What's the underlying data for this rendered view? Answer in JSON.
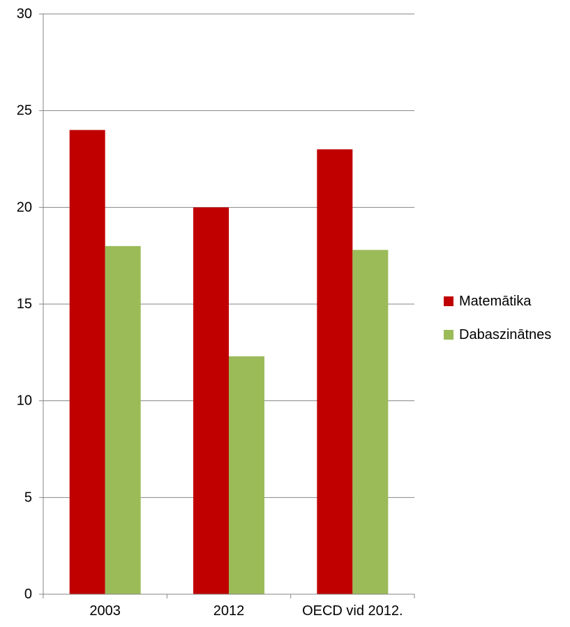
{
  "chart_data": {
    "type": "bar",
    "categories": [
      "2003",
      "2012",
      "OECD vid 2012."
    ],
    "series": [
      {
        "name": "Matemātika",
        "values": [
          24,
          20,
          23
        ],
        "color": "#c00000"
      },
      {
        "name": "Dabaszinātnes",
        "values": [
          18,
          12.3,
          17.8
        ],
        "color": "#9bbb59"
      }
    ],
    "ylim": [
      0,
      30
    ],
    "yticks": [
      0,
      5,
      10,
      15,
      20,
      25,
      30
    ],
    "grid": true,
    "legend_position": "right",
    "title": "",
    "xlabel": "",
    "ylabel": ""
  }
}
